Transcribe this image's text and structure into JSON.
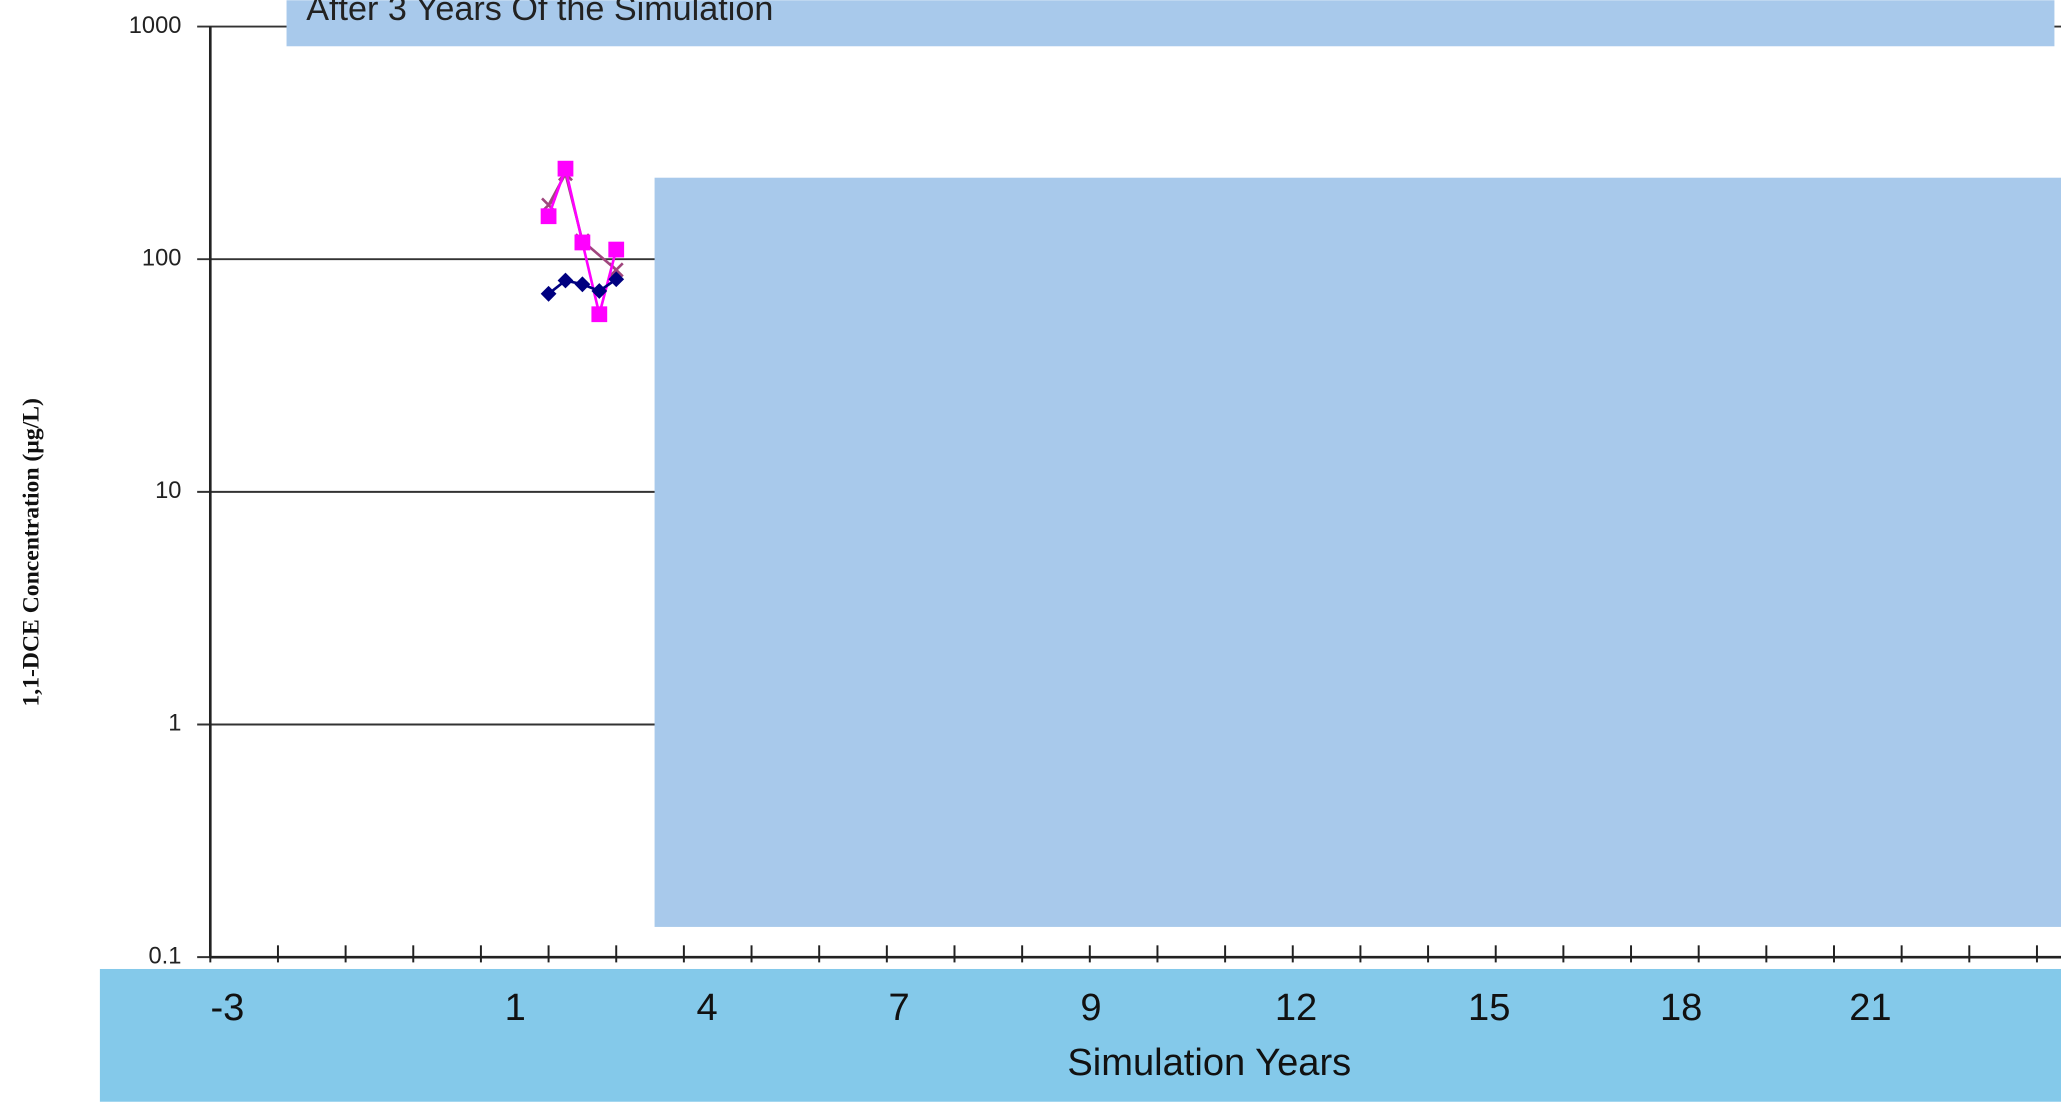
{
  "chart_data": {
    "type": "line",
    "annotation": "After 3 Years Of the Simulation",
    "y_label": "1,1-DCE Concentration (µg/L)",
    "x_label": "Simulation Years",
    "x_band_labels": [
      "-3",
      "1",
      "4",
      "7",
      "9",
      "12",
      "15",
      "18",
      "21"
    ],
    "log_y": true,
    "grid": true,
    "ylim": [
      0.1,
      1000
    ],
    "yticks": [
      0.1,
      1,
      10,
      100,
      1000
    ],
    "xlim": [
      0,
      27.2
    ],
    "xticks": [
      0,
      1,
      2,
      3,
      4,
      5,
      6,
      7,
      8,
      9,
      10,
      11,
      12,
      13,
      14,
      15,
      16,
      17,
      18,
      19,
      20,
      21,
      22,
      23,
      24,
      25,
      26,
      27
    ],
    "series": [
      {
        "color": "#a0467e",
        "marker": "x",
        "x": [
          5,
          5.25,
          5.5,
          6
        ],
        "values": [
          171,
          233,
          120,
          90
        ]
      },
      {
        "color": "#ff00ff",
        "marker": "square",
        "x": [
          5,
          5.25,
          5.5,
          5.75,
          6
        ],
        "values": [
          153,
          245,
          118,
          58,
          110
        ]
      },
      {
        "color": "#000080",
        "marker": "diamond",
        "x": [
          5,
          5.25,
          5.5,
          5.75,
          6
        ],
        "values": [
          71,
          81,
          78,
          73,
          82
        ]
      }
    ]
  }
}
